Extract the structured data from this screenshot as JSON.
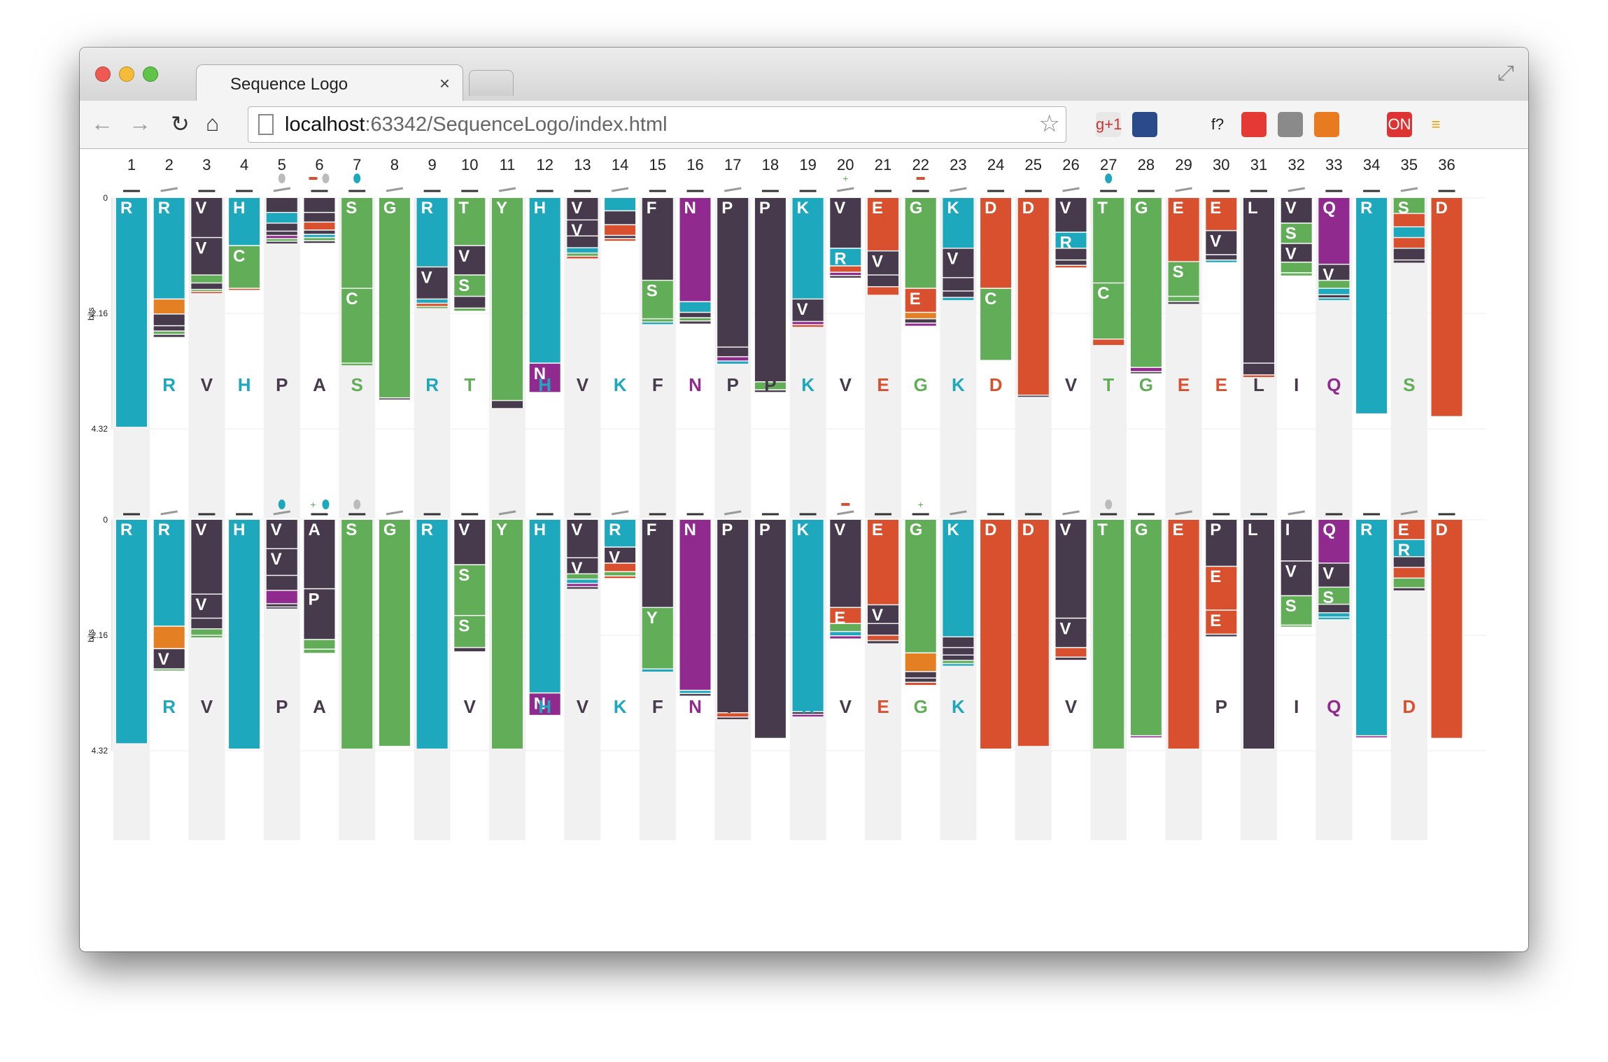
{
  "window": {
    "tab_title": "Sequence Logo",
    "tab_close": "×",
    "url_host": "localhost",
    "url_rest": ":63342/SequenceLogo/index.html"
  },
  "toolbar": {
    "back_icon": "arrow-left-icon",
    "forward_icon": "arrow-right-icon",
    "reload_icon": "reload-icon",
    "home_icon": "home-icon",
    "extensions": [
      "gplus-icon",
      "map-icon",
      "bird-icon",
      "fx-icon",
      "stop-hand-icon",
      "eyedropper-icon",
      "circle-icon",
      "cast-icon",
      "on-icon",
      "menu-icon"
    ],
    "ext_labels": [
      "g+1",
      "",
      "",
      "f?",
      "",
      "",
      "",
      "",
      "ON",
      "≡"
    ]
  },
  "colors": {
    "R": "#1ea8bd",
    "K": "#1ea8bd",
    "H": "#1ea8bd",
    "S": "#62ae58",
    "G": "#62ae58",
    "T": "#62ae58",
    "Y": "#62ae58",
    "C": "#62ae58",
    "V": "#463a4c",
    "P": "#463a4c",
    "F": "#463a4c",
    "L": "#463a4c",
    "I": "#463a4c",
    "A": "#463a4c",
    "N": "#912a8e",
    "Q": "#912a8e",
    "E": "#d9502f",
    "D": "#d9502f",
    "orange": "#e57f24"
  },
  "axis": {
    "ylabel": "bits",
    "ticks": [
      "0",
      "2.16",
      "4.32"
    ]
  },
  "positions": [
    "1",
    "2",
    "3",
    "4",
    "5",
    "6",
    "7",
    "8",
    "9",
    "10",
    "11",
    "12",
    "13",
    "14",
    "15",
    "16",
    "17",
    "18",
    "19",
    "20",
    "21",
    "22",
    "23",
    "24",
    "25",
    "26",
    "27",
    "28",
    "29",
    "30",
    "31",
    "32",
    "33",
    "34",
    "35",
    "36"
  ],
  "chart_data": [
    {
      "type": "sequence-logo",
      "ymax": 4.32,
      "consensus": [
        "R",
        "R",
        "V",
        "H",
        "P",
        "A",
        "S",
        "G",
        "R",
        "T",
        "Y",
        "H",
        "V",
        "K",
        "F",
        "N",
        "P",
        "P",
        "K",
        "V",
        "E",
        "G",
        "K",
        "D",
        "D",
        "V",
        "T",
        "G",
        "E",
        "E",
        "L",
        "I",
        "Q",
        "R",
        "S",
        "D"
      ],
      "annotations": {
        "5": "drop-grey",
        "6": "minus+drop-grey",
        "7": "drop-blue",
        "20": "plus",
        "22": "minus",
        "27": "drop-blue"
      },
      "columns": [
        [
          [
            "R",
            4.3
          ]
        ],
        [
          [
            "R",
            1.9
          ],
          [
            "orange",
            0.28
          ],
          [
            "V",
            0.22
          ],
          [
            "V",
            0.1
          ],
          [
            "S",
            0.06
          ],
          [
            "V",
            0.06
          ]
        ],
        [
          [
            "V",
            0.75
          ],
          [
            "V",
            0.7
          ],
          [
            "S",
            0.15
          ],
          [
            "V",
            0.12
          ],
          [
            "S",
            0.04
          ],
          [
            "E",
            0.04
          ]
        ],
        [
          [
            "H",
            0.9
          ],
          [
            "C",
            0.8
          ],
          [
            "E",
            0.04
          ]
        ],
        [
          [
            "V",
            0.28
          ],
          [
            "R",
            0.2
          ],
          [
            "V",
            0.15
          ],
          [
            "V",
            0.08
          ],
          [
            "N",
            0.06
          ],
          [
            "S",
            0.05
          ],
          [
            "V",
            0.05
          ]
        ],
        [
          [
            "V",
            0.28
          ],
          [
            "V",
            0.18
          ],
          [
            "E",
            0.15
          ],
          [
            "V",
            0.08
          ],
          [
            "R",
            0.06
          ],
          [
            "S",
            0.06
          ],
          [
            "V",
            0.05
          ]
        ],
        [
          [
            "S",
            1.7
          ],
          [
            "C",
            1.4
          ],
          [
            "S",
            0.05
          ]
        ],
        [
          [
            "G",
            3.75
          ],
          [
            "V",
            0.04
          ]
        ],
        [
          [
            "R",
            1.3
          ],
          [
            "V",
            0.6
          ],
          [
            "R",
            0.08
          ],
          [
            "E",
            0.06
          ],
          [
            "S",
            0.04
          ]
        ],
        [
          [
            "T",
            0.9
          ],
          [
            "V",
            0.55
          ],
          [
            "S",
            0.4
          ],
          [
            "V",
            0.22
          ],
          [
            "S",
            0.06
          ]
        ],
        [
          [
            "Y",
            3.8
          ],
          [
            "V",
            0.15
          ]
        ],
        [
          [
            "H",
            3.1
          ],
          [
            "N",
            0.55
          ]
        ],
        [
          [
            "V",
            0.42
          ],
          [
            "V",
            0.3
          ],
          [
            "V",
            0.22
          ],
          [
            "R",
            0.1
          ],
          [
            "S",
            0.06
          ],
          [
            "E",
            0.05
          ]
        ],
        [
          [
            "R",
            0.25
          ],
          [
            "V",
            0.26
          ],
          [
            "E",
            0.2
          ],
          [
            "V",
            0.06
          ],
          [
            "E",
            0.05
          ]
        ],
        [
          [
            "F",
            1.55
          ],
          [
            "S",
            0.72
          ],
          [
            "S",
            0.06
          ],
          [
            "R",
            0.05
          ]
        ],
        [
          [
            "N",
            1.95
          ],
          [
            "R",
            0.2
          ],
          [
            "V",
            0.1
          ],
          [
            "S",
            0.06
          ],
          [
            "V",
            0.06
          ]
        ],
        [
          [
            "P",
            2.8
          ],
          [
            "V",
            0.18
          ],
          [
            "N",
            0.08
          ],
          [
            "R",
            0.06
          ]
        ],
        [
          [
            "P",
            3.45
          ],
          [
            "S",
            0.15
          ],
          [
            "V",
            0.05
          ]
        ],
        [
          [
            "K",
            1.9
          ],
          [
            "V",
            0.42
          ],
          [
            "N",
            0.06
          ],
          [
            "E",
            0.05
          ]
        ],
        [
          [
            "V",
            0.95
          ],
          [
            "R",
            0.33
          ],
          [
            "E",
            0.12
          ],
          [
            "N",
            0.06
          ],
          [
            "V",
            0.05
          ]
        ],
        [
          [
            "E",
            1.0
          ],
          [
            "V",
            0.45
          ],
          [
            "V",
            0.22
          ],
          [
            "E",
            0.16
          ]
        ],
        [
          [
            "G",
            1.7
          ],
          [
            "E",
            0.45
          ],
          [
            "orange",
            0.12
          ],
          [
            "V",
            0.08
          ],
          [
            "N",
            0.06
          ]
        ],
        [
          [
            "K",
            0.95
          ],
          [
            "V",
            0.55
          ],
          [
            "V",
            0.25
          ],
          [
            "V",
            0.12
          ],
          [
            "R",
            0.06
          ]
        ],
        [
          [
            "D",
            1.7
          ],
          [
            "C",
            1.35
          ]
        ],
        [
          [
            "D",
            3.7
          ],
          [
            "V",
            0.04
          ]
        ],
        [
          [
            "V",
            0.65
          ],
          [
            "R",
            0.3
          ],
          [
            "V",
            0.22
          ],
          [
            "V",
            0.1
          ],
          [
            "E",
            0.05
          ]
        ],
        [
          [
            "T",
            1.6
          ],
          [
            "C",
            1.05
          ],
          [
            "E",
            0.12
          ]
        ],
        [
          [
            "G",
            3.18
          ],
          [
            "N",
            0.08
          ],
          [
            "V",
            0.04
          ]
        ],
        [
          [
            "E",
            1.2
          ],
          [
            "S",
            0.65
          ],
          [
            "S",
            0.1
          ],
          [
            "V",
            0.05
          ]
        ],
        [
          [
            "E",
            0.62
          ],
          [
            "V",
            0.45
          ],
          [
            "V",
            0.1
          ],
          [
            "R",
            0.05
          ]
        ],
        [
          [
            "L",
            3.1
          ],
          [
            "V",
            0.22
          ],
          [
            "E",
            0.05
          ]
        ],
        [
          [
            "V",
            0.48
          ],
          [
            "S",
            0.38
          ],
          [
            "V",
            0.35
          ],
          [
            "S",
            0.2
          ],
          [
            "S",
            0.06
          ]
        ],
        [
          [
            "Q",
            1.25
          ],
          [
            "V",
            0.3
          ],
          [
            "S",
            0.15
          ],
          [
            "R",
            0.12
          ],
          [
            "V",
            0.06
          ],
          [
            "R",
            0.05
          ]
        ],
        [
          [
            "R",
            4.05
          ]
        ],
        [
          [
            "S",
            0.3
          ],
          [
            "E",
            0.25
          ],
          [
            "R",
            0.2
          ],
          [
            "E",
            0.2
          ],
          [
            "V",
            0.22
          ],
          [
            "V",
            0.06
          ]
        ],
        [
          [
            "D",
            4.1
          ]
        ]
      ]
    },
    {
      "type": "sequence-logo",
      "ymax": 4.32,
      "consensus": [
        "R",
        "R",
        "V",
        "H",
        "P",
        "A",
        "S",
        "G",
        "R",
        "V",
        "Y",
        "H",
        "V",
        "K",
        "F",
        "N",
        "P",
        "P",
        "K",
        "V",
        "E",
        "G",
        "K",
        "D",
        "D",
        "V",
        "T",
        "G",
        "E",
        "P",
        "L",
        "I",
        "Q",
        "R",
        "D",
        "D"
      ],
      "annotations": {
        "5": "drop-blue",
        "6": "plus+drop-blue",
        "7": "drop-grey",
        "20": "minus",
        "22": "plus",
        "27": "drop-grey"
      },
      "columns": [
        [
          [
            "R",
            4.2
          ]
        ],
        [
          [
            "R",
            2.0
          ],
          [
            "orange",
            0.42
          ],
          [
            "V",
            0.38
          ],
          [
            "S",
            0.04
          ]
        ],
        [
          [
            "V",
            1.4
          ],
          [
            "V",
            0.45
          ],
          [
            "V",
            0.2
          ],
          [
            "S",
            0.12
          ],
          [
            "S",
            0.05
          ]
        ],
        [
          [
            "H",
            4.3
          ]
        ],
        [
          [
            "V",
            0.55
          ],
          [
            "V",
            0.5
          ],
          [
            "V",
            0.28
          ],
          [
            "N",
            0.25
          ],
          [
            "V",
            0.06
          ],
          [
            "V",
            0.04
          ]
        ],
        [
          [
            "A",
            1.3
          ],
          [
            "P",
            0.95
          ],
          [
            "S",
            0.18
          ],
          [
            "S",
            0.08
          ]
        ],
        [
          [
            "S",
            4.3
          ]
        ],
        [
          [
            "G",
            4.25
          ]
        ],
        [
          [
            "R",
            4.3
          ]
        ],
        [
          [
            "V",
            0.85
          ],
          [
            "S",
            0.95
          ],
          [
            "S",
            0.6
          ],
          [
            "V",
            0.08
          ]
        ],
        [
          [
            "Y",
            4.3
          ]
        ],
        [
          [
            "H",
            3.25
          ],
          [
            "N",
            0.42
          ]
        ],
        [
          [
            "V",
            0.72
          ],
          [
            "V",
            0.3
          ],
          [
            "S",
            0.1
          ],
          [
            "R",
            0.08
          ],
          [
            "N",
            0.06
          ],
          [
            "V",
            0.05
          ]
        ],
        [
          [
            "R",
            0.52
          ],
          [
            "V",
            0.3
          ],
          [
            "E",
            0.16
          ],
          [
            "S",
            0.08
          ],
          [
            "E",
            0.05
          ]
        ],
        [
          [
            "F",
            1.65
          ],
          [
            "Y",
            1.15
          ],
          [
            "R",
            0.06
          ]
        ],
        [
          [
            "N",
            3.2
          ],
          [
            "R",
            0.06
          ],
          [
            "V",
            0.05
          ]
        ],
        [
          [
            "P",
            3.62
          ],
          [
            "E",
            0.08
          ],
          [
            "V",
            0.05
          ]
        ],
        [
          [
            "P",
            4.1
          ]
        ],
        [
          [
            "K",
            3.6
          ],
          [
            "V",
            0.05
          ],
          [
            "N",
            0.05
          ]
        ],
        [
          [
            "V",
            1.65
          ],
          [
            "E",
            0.3
          ],
          [
            "S",
            0.15
          ],
          [
            "R",
            0.08
          ],
          [
            "N",
            0.06
          ]
        ],
        [
          [
            "E",
            1.6
          ],
          [
            "V",
            0.35
          ],
          [
            "V",
            0.22
          ],
          [
            "E",
            0.1
          ],
          [
            "V",
            0.06
          ]
        ],
        [
          [
            "G",
            2.5
          ],
          [
            "orange",
            0.35
          ],
          [
            "V",
            0.12
          ],
          [
            "V",
            0.08
          ],
          [
            "E",
            0.06
          ]
        ],
        [
          [
            "K",
            2.2
          ],
          [
            "V",
            0.2
          ],
          [
            "V",
            0.14
          ],
          [
            "V",
            0.1
          ],
          [
            "S",
            0.06
          ],
          [
            "R",
            0.05
          ]
        ],
        [
          [
            "D",
            4.3
          ]
        ],
        [
          [
            "D",
            4.25
          ]
        ],
        [
          [
            "V",
            1.85
          ],
          [
            "V",
            0.55
          ],
          [
            "E",
            0.18
          ],
          [
            "V",
            0.06
          ]
        ],
        [
          [
            "T",
            4.3
          ]
        ],
        [
          [
            "G",
            4.05
          ],
          [
            "N",
            0.04
          ]
        ],
        [
          [
            "E",
            4.3
          ]
        ],
        [
          [
            "P",
            0.88
          ],
          [
            "E",
            0.82
          ],
          [
            "E",
            0.45
          ],
          [
            "V",
            0.05
          ]
        ],
        [
          [
            "L",
            4.3
          ]
        ],
        [
          [
            "I",
            0.78
          ],
          [
            "V",
            0.65
          ],
          [
            "S",
            0.55
          ],
          [
            "S",
            0.04
          ]
        ],
        [
          [
            "Q",
            0.82
          ],
          [
            "V",
            0.45
          ],
          [
            "S",
            0.32
          ],
          [
            "V",
            0.16
          ],
          [
            "R",
            0.08
          ],
          [
            "R",
            0.05
          ]
        ],
        [
          [
            "R",
            4.05
          ],
          [
            "N",
            0.04
          ]
        ],
        [
          [
            "E",
            0.38
          ],
          [
            "R",
            0.32
          ],
          [
            "V",
            0.2
          ],
          [
            "E",
            0.2
          ],
          [
            "S",
            0.18
          ],
          [
            "V",
            0.06
          ]
        ],
        [
          [
            "D",
            4.1
          ]
        ]
      ]
    }
  ]
}
